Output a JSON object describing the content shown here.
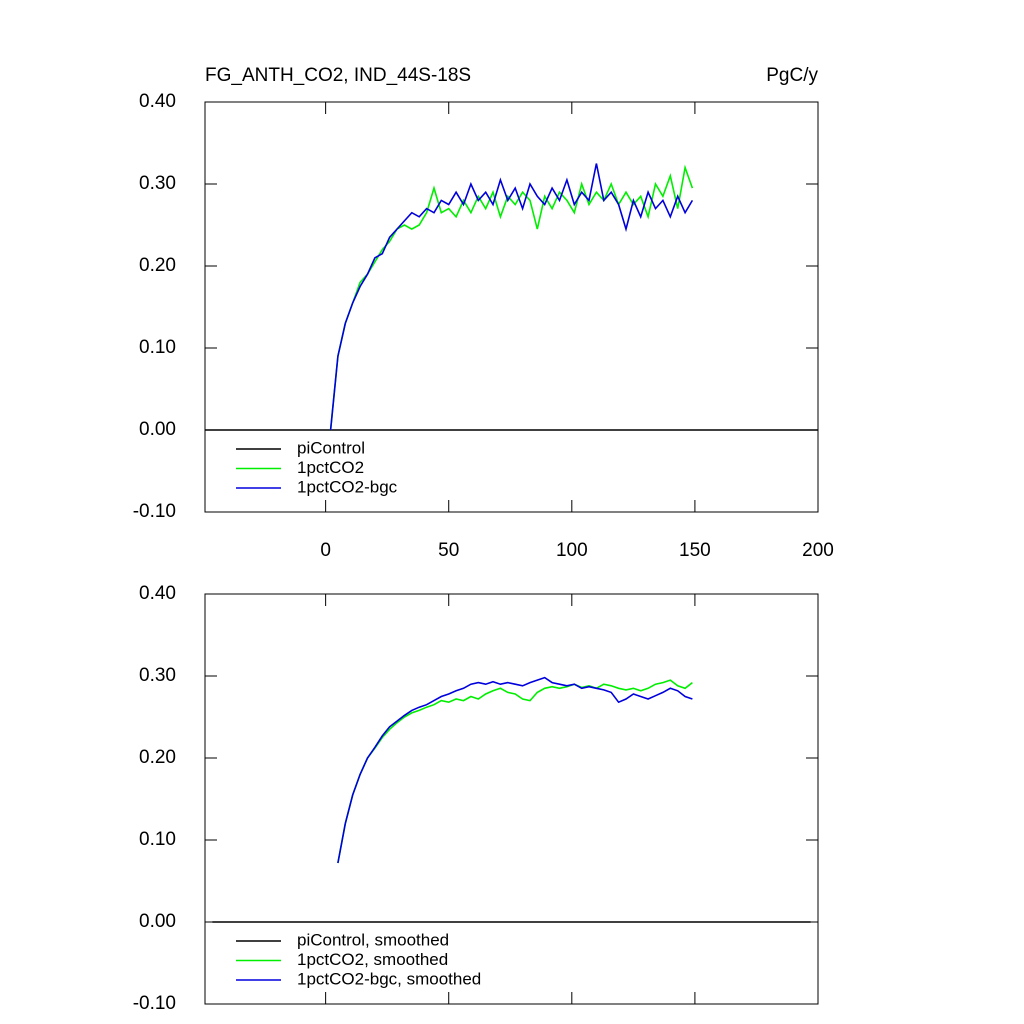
{
  "chart_data": [
    {
      "type": "line",
      "title": "FG_ANTH_CO2, IND_44S-18S",
      "units": "PgC/y",
      "xlim": [
        -49,
        200
      ],
      "xticks": [
        0,
        50,
        100,
        150,
        200
      ],
      "xtick_labels": true,
      "ylim": [
        -0.1,
        0.4
      ],
      "yticks": [
        {
          "value": -0.1,
          "label": "-0.10"
        },
        {
          "value": 0,
          "label": "0.00"
        },
        {
          "value": 0.1,
          "label": "0.10"
        },
        {
          "value": 0.2,
          "label": "0.20"
        },
        {
          "value": 0.3,
          "label": "0.30"
        },
        {
          "value": 0.4,
          "label": "0.40"
        }
      ],
      "series": [
        {
          "name": "piControl",
          "color": "#000000",
          "x": [
            -49,
            200
          ],
          "values": [
            0,
            0
          ]
        },
        {
          "name": "1pctCO2",
          "color": "#00ee00",
          "x": [
            2,
            5,
            8,
            11,
            14,
            17,
            20,
            23,
            26,
            29,
            32,
            35,
            38,
            41,
            44,
            47,
            50,
            53,
            56,
            59,
            62,
            65,
            68,
            71,
            74,
            77,
            80,
            83,
            86,
            89,
            92,
            95,
            98,
            101,
            104,
            107,
            110,
            113,
            116,
            119,
            122,
            125,
            128,
            131,
            134,
            137,
            140,
            143,
            146,
            149
          ],
          "values": [
            0,
            0.09,
            0.13,
            0.155,
            0.18,
            0.19,
            0.205,
            0.22,
            0.23,
            0.245,
            0.25,
            0.245,
            0.25,
            0.265,
            0.295,
            0.265,
            0.27,
            0.26,
            0.28,
            0.265,
            0.285,
            0.27,
            0.29,
            0.26,
            0.285,
            0.275,
            0.29,
            0.28,
            0.245,
            0.285,
            0.27,
            0.29,
            0.28,
            0.265,
            0.3,
            0.275,
            0.29,
            0.28,
            0.3,
            0.275,
            0.29,
            0.275,
            0.285,
            0.26,
            0.3,
            0.285,
            0.31,
            0.27,
            0.32,
            0.295
          ]
        },
        {
          "name": "1pctCO2-bgc",
          "color": "#0000dd",
          "x": [
            2,
            5,
            8,
            11,
            14,
            17,
            20,
            23,
            26,
            29,
            32,
            35,
            38,
            41,
            44,
            47,
            50,
            53,
            56,
            59,
            62,
            65,
            68,
            71,
            74,
            77,
            80,
            83,
            86,
            89,
            92,
            95,
            98,
            101,
            104,
            107,
            110,
            113,
            116,
            119,
            122,
            125,
            128,
            131,
            134,
            137,
            140,
            143,
            146,
            149
          ],
          "values": [
            0,
            0.09,
            0.13,
            0.155,
            0.175,
            0.19,
            0.21,
            0.215,
            0.235,
            0.245,
            0.255,
            0.265,
            0.26,
            0.27,
            0.265,
            0.28,
            0.275,
            0.29,
            0.275,
            0.3,
            0.28,
            0.29,
            0.275,
            0.305,
            0.28,
            0.295,
            0.27,
            0.3,
            0.285,
            0.275,
            0.295,
            0.28,
            0.305,
            0.275,
            0.29,
            0.28,
            0.325,
            0.28,
            0.29,
            0.275,
            0.245,
            0.28,
            0.26,
            0.29,
            0.27,
            0.28,
            0.26,
            0.285,
            0.265,
            0.28
          ]
        }
      ]
    },
    {
      "type": "line",
      "xlim": [
        -49,
        200
      ],
      "xticks": [
        0,
        50,
        100,
        150,
        200
      ],
      "xtick_labels": false,
      "ylim": [
        -0.1,
        0.4
      ],
      "yticks": [
        {
          "value": -0.1,
          "label": "-0.10"
        },
        {
          "value": 0,
          "label": "0.00"
        },
        {
          "value": 0.1,
          "label": "0.10"
        },
        {
          "value": 0.2,
          "label": "0.20"
        },
        {
          "value": 0.3,
          "label": "0.30"
        },
        {
          "value": 0.4,
          "label": "0.40"
        }
      ],
      "series": [
        {
          "name": "piControl, smoothed",
          "color": "#000000",
          "x": [
            -46,
            197
          ],
          "values": [
            0,
            0
          ]
        },
        {
          "name": "1pctCO2, smoothed",
          "color": "#00ee00",
          "x": [
            5,
            8,
            11,
            14,
            17,
            20,
            23,
            26,
            29,
            32,
            35,
            38,
            41,
            44,
            47,
            50,
            53,
            56,
            59,
            62,
            65,
            68,
            71,
            74,
            77,
            80,
            83,
            86,
            89,
            92,
            95,
            98,
            101,
            104,
            107,
            110,
            113,
            116,
            119,
            122,
            125,
            128,
            131,
            134,
            137,
            140,
            143,
            146,
            149
          ],
          "values": [
            0.072,
            0.12,
            0.155,
            0.18,
            0.2,
            0.212,
            0.225,
            0.235,
            0.243,
            0.25,
            0.255,
            0.258,
            0.262,
            0.265,
            0.27,
            0.268,
            0.272,
            0.27,
            0.275,
            0.272,
            0.278,
            0.282,
            0.285,
            0.28,
            0.278,
            0.272,
            0.27,
            0.28,
            0.285,
            0.287,
            0.285,
            0.287,
            0.29,
            0.286,
            0.288,
            0.285,
            0.29,
            0.288,
            0.285,
            0.283,
            0.285,
            0.282,
            0.285,
            0.29,
            0.292,
            0.295,
            0.288,
            0.285,
            0.292
          ]
        },
        {
          "name": "1pctCO2-bgc, smoothed",
          "color": "#0000dd",
          "x": [
            5,
            8,
            11,
            14,
            17,
            20,
            23,
            26,
            29,
            32,
            35,
            38,
            41,
            44,
            47,
            50,
            53,
            56,
            59,
            62,
            65,
            68,
            71,
            74,
            77,
            80,
            83,
            86,
            89,
            92,
            95,
            98,
            101,
            104,
            107,
            110,
            113,
            116,
            119,
            122,
            125,
            128,
            131,
            134,
            137,
            140,
            143,
            146,
            149
          ],
          "values": [
            0.072,
            0.12,
            0.155,
            0.18,
            0.2,
            0.213,
            0.227,
            0.238,
            0.245,
            0.252,
            0.258,
            0.262,
            0.265,
            0.27,
            0.275,
            0.278,
            0.282,
            0.285,
            0.29,
            0.292,
            0.29,
            0.293,
            0.29,
            0.292,
            0.29,
            0.288,
            0.292,
            0.295,
            0.298,
            0.292,
            0.29,
            0.288,
            0.29,
            0.285,
            0.287,
            0.285,
            0.283,
            0.28,
            0.268,
            0.272,
            0.278,
            0.275,
            0.272,
            0.276,
            0.28,
            0.285,
            0.282,
            0.275,
            0.272
          ]
        }
      ]
    }
  ]
}
